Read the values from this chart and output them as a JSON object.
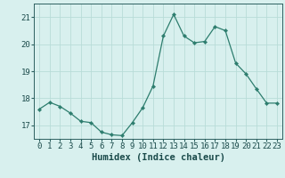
{
  "x": [
    0,
    1,
    2,
    3,
    4,
    5,
    6,
    7,
    8,
    9,
    10,
    11,
    12,
    13,
    14,
    15,
    16,
    17,
    18,
    19,
    20,
    21,
    22,
    23
  ],
  "y": [
    17.6,
    17.85,
    17.7,
    17.45,
    17.15,
    17.1,
    16.75,
    16.65,
    16.62,
    17.1,
    17.65,
    18.45,
    20.3,
    21.1,
    20.3,
    20.05,
    20.1,
    20.65,
    20.5,
    19.3,
    18.9,
    18.35,
    17.82,
    17.82
  ],
  "line_color": "#2d7d6e",
  "marker": "D",
  "marker_size": 2.2,
  "bg_color": "#d8f0ee",
  "grid_color": "#b8dcd8",
  "xlabel": "Humidex (Indice chaleur)",
  "ylim": [
    16.5,
    21.5
  ],
  "xlim": [
    -0.5,
    23.5
  ],
  "yticks": [
    17,
    18,
    19,
    20,
    21
  ],
  "xticks": [
    0,
    1,
    2,
    3,
    4,
    5,
    6,
    7,
    8,
    9,
    10,
    11,
    12,
    13,
    14,
    15,
    16,
    17,
    18,
    19,
    20,
    21,
    22,
    23
  ],
  "tick_color": "#2d6060",
  "font_color": "#1a4a4a",
  "xlabel_fontsize": 7.5,
  "tick_fontsize": 6.5,
  "linewidth": 0.9
}
